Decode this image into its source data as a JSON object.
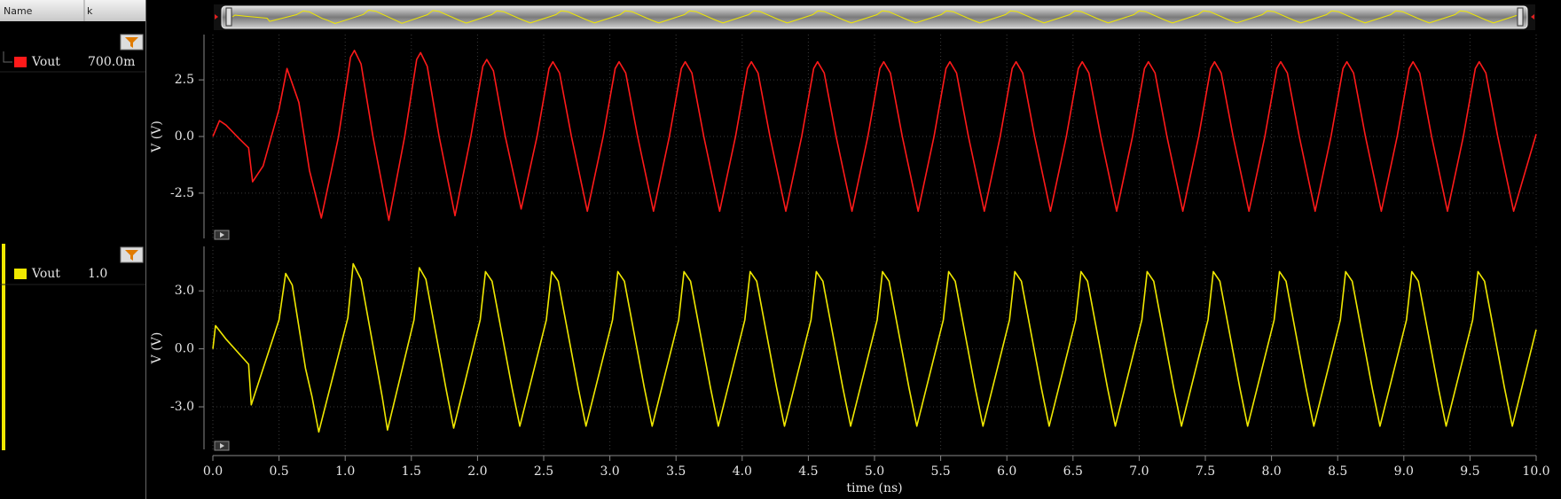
{
  "panel": {
    "headers": [
      "Name",
      "k"
    ],
    "rows": [
      {
        "value": "700.0m"
      },
      {
        "value": "1.0"
      }
    ]
  },
  "chart_data": [
    {
      "type": "line",
      "ylabel": "V (V)",
      "xlim": [
        0,
        10
      ],
      "ylim": [
        -4.5,
        4.5
      ],
      "grid": true,
      "yticks": [
        2.5,
        {
          "value": 0,
          "label": "0.0"
        },
        -2.5
      ],
      "series": [
        {
          "name": "Vout",
          "color": "#ff1a1a",
          "x": [
            0,
            0.05,
            0.1,
            0.2,
            0.27,
            0.3,
            0.38,
            0.5,
            0.56,
            0.65,
            0.73,
            0.82,
            0.95,
            1.04,
            1.07,
            1.12,
            1.21,
            1.33,
            1.45,
            1.54,
            1.57,
            1.62,
            1.71,
            1.83,
            1.95,
            2.04,
            2.07,
            2.12,
            2.21,
            2.33,
            2.45,
            2.54,
            2.57,
            2.62,
            2.71,
            2.83,
            2.95,
            3.04,
            3.07,
            3.12,
            3.21,
            3.33,
            3.45,
            3.54,
            3.57,
            3.62,
            3.71,
            3.83,
            3.95,
            4.04,
            4.07,
            4.12,
            4.21,
            4.33,
            4.45,
            4.54,
            4.57,
            4.62,
            4.71,
            4.83,
            4.95,
            5.04,
            5.07,
            5.12,
            5.21,
            5.33,
            5.45,
            5.54,
            5.57,
            5.62,
            5.71,
            5.83,
            5.95,
            6.04,
            6.07,
            6.12,
            6.21,
            6.33,
            6.45,
            6.54,
            6.57,
            6.62,
            6.71,
            6.83,
            6.95,
            7.04,
            7.07,
            7.12,
            7.21,
            7.33,
            7.45,
            7.54,
            7.57,
            7.62,
            7.71,
            7.83,
            7.95,
            8.04,
            8.07,
            8.12,
            8.21,
            8.33,
            8.45,
            8.54,
            8.57,
            8.62,
            8.71,
            8.83,
            8.95,
            9.04,
            9.07,
            9.12,
            9.21,
            9.33,
            9.45,
            9.54,
            9.57,
            9.62,
            9.71,
            9.83,
            10.0
          ],
          "values": [
            0,
            0.7,
            0.5,
            -0.1,
            -0.5,
            -2.0,
            -1.3,
            1.2,
            3.0,
            1.5,
            -1.5,
            -3.6,
            0,
            3.5,
            3.8,
            3.2,
            0,
            -3.7,
            0,
            3.4,
            3.7,
            3.1,
            0,
            -3.5,
            0,
            3.1,
            3.4,
            2.9,
            0,
            -3.2,
            0,
            3.0,
            3.3,
            2.8,
            0,
            -3.3,
            0,
            3.0,
            3.3,
            2.8,
            0,
            -3.3,
            0,
            3.0,
            3.3,
            2.8,
            0,
            -3.3,
            0,
            3.0,
            3.3,
            2.8,
            0,
            -3.3,
            0,
            3.0,
            3.3,
            2.8,
            0,
            -3.3,
            0,
            3.0,
            3.3,
            2.8,
            0,
            -3.3,
            0,
            3.0,
            3.3,
            2.8,
            0,
            -3.3,
            0,
            3.0,
            3.3,
            2.8,
            0,
            -3.3,
            0,
            3.0,
            3.3,
            2.8,
            0,
            -3.3,
            0,
            3.0,
            3.3,
            2.8,
            0,
            -3.3,
            0,
            3.0,
            3.3,
            2.8,
            0,
            -3.3,
            0,
            3.0,
            3.3,
            2.8,
            0,
            -3.3,
            0,
            3.0,
            3.3,
            2.8,
            0,
            -3.3,
            0,
            3.0,
            3.3,
            2.8,
            0,
            -3.3,
            0,
            3.0,
            3.3,
            2.8,
            0,
            -3.3,
            0.1
          ]
        }
      ]
    },
    {
      "type": "line",
      "ylabel": "V (V)",
      "xlabel": "time (ns)",
      "xlim": [
        0,
        10
      ],
      "ylim": [
        -5.2,
        5.3
      ],
      "grid": true,
      "yticks": [
        {
          "value": 3,
          "label": "3.0"
        },
        {
          "value": 0,
          "label": "0.0"
        },
        {
          "value": -3,
          "label": "-3.0"
        }
      ],
      "xticks": [
        {
          "value": 0,
          "label": "0.0"
        },
        0.5,
        {
          "value": 1,
          "label": "1.0"
        },
        1.5,
        {
          "value": 2,
          "label": "2.0"
        },
        2.5,
        {
          "value": 3,
          "label": "3.0"
        },
        3.5,
        {
          "value": 4,
          "label": "4.0"
        },
        4.5,
        {
          "value": 5,
          "label": "5.0"
        },
        5.5,
        {
          "value": 6,
          "label": "6.0"
        },
        6.5,
        {
          "value": 7,
          "label": "7.0"
        },
        7.5,
        {
          "value": 8,
          "label": "8.0"
        },
        8.5,
        {
          "value": 9,
          "label": "9.0"
        },
        9.5,
        {
          "value": 10,
          "label": "10.0"
        }
      ],
      "series": [
        {
          "name": "Vout",
          "color": "#f0e800",
          "x": [
            0,
            0.02,
            0.1,
            0.27,
            0.29,
            0.5,
            0.55,
            0.6,
            0.7,
            0.75,
            0.8,
            1.02,
            1.06,
            1.12,
            1.28,
            1.32,
            1.52,
            1.56,
            1.61,
            1.76,
            1.82,
            2.02,
            2.06,
            2.11,
            2.26,
            2.32,
            2.52,
            2.56,
            2.61,
            2.76,
            2.82,
            3.02,
            3.06,
            3.11,
            3.26,
            3.32,
            3.52,
            3.56,
            3.61,
            3.76,
            3.82,
            4.02,
            4.06,
            4.11,
            4.26,
            4.32,
            4.52,
            4.56,
            4.61,
            4.76,
            4.82,
            5.02,
            5.06,
            5.11,
            5.26,
            5.32,
            5.52,
            5.56,
            5.61,
            5.76,
            5.82,
            6.02,
            6.06,
            6.11,
            6.26,
            6.32,
            6.52,
            6.56,
            6.61,
            6.76,
            6.82,
            7.02,
            7.06,
            7.11,
            7.26,
            7.32,
            7.52,
            7.56,
            7.61,
            7.76,
            7.82,
            8.02,
            8.06,
            8.11,
            8.26,
            8.32,
            8.52,
            8.56,
            8.61,
            8.76,
            8.82,
            9.02,
            9.06,
            9.11,
            9.26,
            9.32,
            9.52,
            9.56,
            9.61,
            9.76,
            9.82,
            10.0
          ],
          "values": [
            0,
            1.2,
            0.5,
            -0.8,
            -2.9,
            1.5,
            3.9,
            3.3,
            -1.0,
            -2.5,
            -4.3,
            1.6,
            4.4,
            3.6,
            -2.5,
            -4.2,
            1.5,
            4.2,
            3.6,
            -2.0,
            -4.1,
            1.5,
            4.0,
            3.5,
            -2.0,
            -4.0,
            1.5,
            4.0,
            3.5,
            -2.0,
            -4.0,
            1.5,
            4.0,
            3.5,
            -2.0,
            -4.0,
            1.5,
            4.0,
            3.5,
            -2.0,
            -4.0,
            1.5,
            4.0,
            3.5,
            -2.0,
            -4.0,
            1.5,
            4.0,
            3.5,
            -2.0,
            -4.0,
            1.5,
            4.0,
            3.5,
            -2.0,
            -4.0,
            1.5,
            4.0,
            3.5,
            -2.0,
            -4.0,
            1.5,
            4.0,
            3.5,
            -2.0,
            -4.0,
            1.5,
            4.0,
            3.5,
            -2.0,
            -4.0,
            1.5,
            4.0,
            3.5,
            -2.0,
            -4.0,
            1.5,
            4.0,
            3.5,
            -2.0,
            -4.0,
            1.5,
            4.0,
            3.5,
            -2.0,
            -4.0,
            1.5,
            4.0,
            3.5,
            -2.0,
            -4.0,
            1.5,
            4.0,
            3.5,
            -2.0,
            -4.0,
            1.5,
            4.0,
            3.5,
            -2.0,
            -4.0,
            1.0
          ]
        }
      ]
    }
  ]
}
